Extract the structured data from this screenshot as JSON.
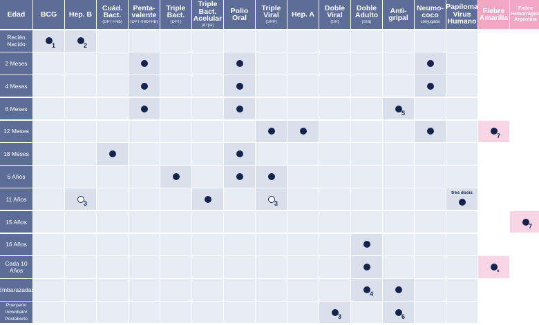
{
  "colors": {
    "header": "#5c6d97",
    "cell": "#e8edf5",
    "dot": "#13234d",
    "pink": "#f1a7c4"
  },
  "header": [
    {
      "main": "Edad",
      "sub": ""
    },
    {
      "main": "BCG",
      "sub": ""
    },
    {
      "main": "Hep. B",
      "sub": ""
    },
    {
      "main": "Cuád. Bact.",
      "sub": "(DPT+Hib)"
    },
    {
      "main": "Penta- valente",
      "sub": "(DPT+Hib+HB)"
    },
    {
      "main": "Triple Bact.",
      "sub": "(DPT)"
    },
    {
      "main": "Triple Bact. Acelular",
      "sub": "(dTpa)"
    },
    {
      "main": "Polio Oral",
      "sub": ""
    },
    {
      "main": "Triple Viral",
      "sub": "(SRP)"
    },
    {
      "main": "Hep. A",
      "sub": ""
    },
    {
      "main": "Doble Viral",
      "sub": "(SR)"
    },
    {
      "main": "Doble Adulto",
      "sub": "(dTa)"
    },
    {
      "main": "Anti- gripal",
      "sub": ""
    },
    {
      "main": "Neumo- coco",
      "sub": "conjugada"
    },
    {
      "main": "Papiloma Virus Humano",
      "sub": ""
    },
    {
      "main": "Fiebre Amarilla",
      "sub": ""
    },
    {
      "main": "Fiebre Hemorrágica Argentina",
      "sub": ""
    }
  ],
  "rows": [
    {
      "label": "Recién Nacido",
      "cells": {
        "1": {
          "note": "1"
        },
        "2": {
          "note": "2"
        }
      }
    },
    {
      "label": "2 Meses",
      "cells": {
        "4": {},
        "7": {},
        "13": {}
      }
    },
    {
      "label": "4 Meses",
      "cells": {
        "4": {},
        "7": {},
        "13": {}
      }
    },
    {
      "label": "6 Meses",
      "cells": {
        "4": {},
        "7": {},
        "12": {
          "note": "5"
        }
      }
    },
    {
      "label": "12 Meses",
      "cells": {
        "8": {},
        "9": {},
        "13": {},
        "15": {
          "note": "7"
        }
      }
    },
    {
      "label": "18 Meses",
      "cells": {
        "3": {},
        "7": {}
      }
    },
    {
      "label": "6 Años",
      "cells": {
        "5": {},
        "7": {},
        "8": {}
      }
    },
    {
      "label": "11 Años",
      "cells": {
        "2": {
          "hollow": true,
          "note": "3"
        },
        "6": {},
        "8": {
          "hollow": true,
          "note": "3"
        },
        "14": {
          "text": "tres dosis"
        }
      }
    },
    {
      "label": "15 Años",
      "cells": {
        "16": {
          "note": "7"
        }
      }
    },
    {
      "label": "16 Años",
      "cells": {
        "11": {}
      }
    },
    {
      "label": "Cada 10 Años",
      "cells": {
        "11": {},
        "15": {
          "note": "*"
        }
      }
    },
    {
      "label": "Embarazadas",
      "cells": {
        "11": {
          "note": "4"
        },
        "12": {}
      }
    },
    {
      "label": "Puerperio Inmediato/ Postaborto",
      "cells": {
        "10": {
          "note": "3"
        },
        "12": {
          "note": "6"
        }
      }
    }
  ]
}
